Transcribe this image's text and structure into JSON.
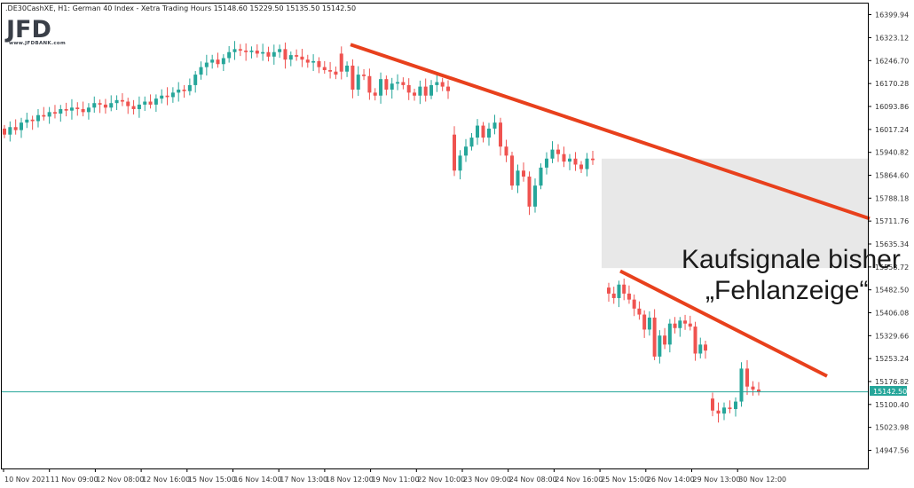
{
  "header": {
    "symbol_info": ".DE30CashXE, H1:  German 40 Index  - Xetra Trading Hours  15148.60 15229.50 15135.50 15142.50"
  },
  "logo": {
    "text": "JFD",
    "sub": "www.JFDBANK.com"
  },
  "annotation": {
    "line1": "Kaufsignale bisher",
    "line2": "„Fehlanzeige“"
  },
  "current_price_label": "15142.50",
  "colors": {
    "up": "#26a69a",
    "down": "#ef5350",
    "trendline": "#e8401c",
    "zone": "#e8e8e8",
    "price_line": "#26a69a"
  },
  "chart_data": {
    "type": "candlestick",
    "ylim": [
      14900,
      16430
    ],
    "y_ticks": [
      "16399.94",
      "16323.12",
      "16246.70",
      "16170.28",
      "16093.86",
      "16017.24",
      "15940.82",
      "15864.60",
      "15788.18",
      "15711.76",
      "15635.34",
      "15558.72",
      "15482.50",
      "15406.08",
      "15329.66",
      "15253.24",
      "15176.82",
      "15100.40",
      "15023.98",
      "14947.56"
    ],
    "x_ticks": [
      "10 Nov 2021",
      "11 Nov 09:00",
      "12 Nov 08:00",
      "12 Nov 16:00",
      "15 Nov 15:00",
      "16 Nov 14:00",
      "17 Nov 13:00",
      "18 Nov 12:00",
      "19 Nov 11:00",
      "22 Nov 10:00",
      "23 Nov 09:00",
      "24 Nov 08:00",
      "24 Nov 16:00",
      "25 Nov 15:00",
      "26 Nov 14:00",
      "29 Nov 13:00",
      "30 Nov 12:00"
    ],
    "price_line": 15142.5,
    "candles_open_close": [
      [
        16020,
        16000
      ],
      [
        16000,
        16025
      ],
      [
        16025,
        16015
      ],
      [
        16015,
        16040
      ],
      [
        16040,
        16050
      ],
      [
        16050,
        16045
      ],
      [
        16045,
        16065
      ],
      [
        16065,
        16060
      ],
      [
        16060,
        16075
      ],
      [
        16075,
        16070
      ],
      [
        16070,
        16085
      ],
      [
        16085,
        16080
      ],
      [
        16080,
        16090
      ],
      [
        16090,
        16085
      ],
      [
        16085,
        16075
      ],
      [
        16075,
        16090
      ],
      [
        16090,
        16105
      ],
      [
        16105,
        16100
      ],
      [
        16100,
        16090
      ],
      [
        16090,
        16105
      ],
      [
        16105,
        16115
      ],
      [
        16115,
        16110
      ],
      [
        16110,
        16095
      ],
      [
        16095,
        16085
      ],
      [
        16085,
        16100
      ],
      [
        16100,
        16110
      ],
      [
        16110,
        16100
      ],
      [
        16100,
        16120
      ],
      [
        16120,
        16130
      ],
      [
        16130,
        16125
      ],
      [
        16125,
        16140
      ],
      [
        16140,
        16150
      ],
      [
        16150,
        16145
      ],
      [
        16145,
        16165
      ],
      [
        16165,
        16200
      ],
      [
        16200,
        16225
      ],
      [
        16225,
        16240
      ],
      [
        16240,
        16250
      ],
      [
        16250,
        16235
      ],
      [
        16235,
        16255
      ],
      [
        16255,
        16275
      ],
      [
        16275,
        16285
      ],
      [
        16285,
        16280
      ],
      [
        16280,
        16275
      ],
      [
        16275,
        16280
      ],
      [
        16280,
        16270
      ],
      [
        16270,
        16275
      ],
      [
        16275,
        16260
      ],
      [
        16260,
        16275
      ],
      [
        16275,
        16285
      ],
      [
        16285,
        16250
      ],
      [
        16250,
        16265
      ],
      [
        16265,
        16260
      ],
      [
        16260,
        16250
      ],
      [
        16250,
        16240
      ],
      [
        16240,
        16245
      ],
      [
        16245,
        16225
      ],
      [
        16225,
        16215
      ],
      [
        16215,
        16210
      ],
      [
        16210,
        16200
      ],
      [
        16270,
        16210
      ],
      [
        16210,
        16230
      ],
      [
        16230,
        16150
      ],
      [
        16150,
        16200
      ],
      [
        16200,
        16195
      ],
      [
        16195,
        16140
      ],
      [
        16140,
        16130
      ],
      [
        16130,
        16185
      ],
      [
        16185,
        16150
      ],
      [
        16150,
        16170
      ],
      [
        16170,
        16175
      ],
      [
        16175,
        16165
      ],
      [
        16165,
        16140
      ],
      [
        16140,
        16130
      ],
      [
        16130,
        16160
      ],
      [
        16160,
        16130
      ],
      [
        16130,
        16165
      ],
      [
        16165,
        16175
      ],
      [
        16175,
        16160
      ],
      [
        16160,
        16145
      ],
      [
        16000,
        15880
      ],
      [
        15880,
        15930
      ],
      [
        15930,
        15960
      ],
      [
        15960,
        15990
      ],
      [
        15990,
        16030
      ],
      [
        16030,
        15990
      ],
      [
        15990,
        16020
      ],
      [
        16020,
        16040
      ],
      [
        16040,
        15960
      ],
      [
        15960,
        15930
      ],
      [
        15930,
        15830
      ],
      [
        15830,
        15880
      ],
      [
        15880,
        15860
      ],
      [
        15860,
        15760
      ],
      [
        15760,
        15830
      ],
      [
        15830,
        15890
      ],
      [
        15890,
        15920
      ],
      [
        15920,
        15950
      ],
      [
        15950,
        15935
      ],
      [
        15935,
        15910
      ],
      [
        15910,
        15920
      ],
      [
        15920,
        15900
      ],
      [
        15900,
        15885
      ],
      [
        15885,
        15920
      ],
      [
        15920,
        15915
      ],
      [
        15490,
        15470
      ],
      [
        15470,
        15455
      ],
      [
        15455,
        15500
      ],
      [
        15500,
        15470
      ],
      [
        15470,
        15450
      ],
      [
        15450,
        15420
      ],
      [
        15420,
        15400
      ],
      [
        15400,
        15350
      ],
      [
        15350,
        15390
      ],
      [
        15390,
        15260
      ],
      [
        15260,
        15330
      ],
      [
        15330,
        15300
      ],
      [
        15300,
        15370
      ],
      [
        15370,
        15355
      ],
      [
        15355,
        15380
      ],
      [
        15380,
        15370
      ],
      [
        15370,
        15360
      ],
      [
        15360,
        15270
      ],
      [
        15270,
        15300
      ],
      [
        15300,
        15280
      ],
      [
        15120,
        15080
      ],
      [
        15080,
        15070
      ],
      [
        15070,
        15090
      ],
      [
        15090,
        15085
      ],
      [
        15085,
        15110
      ],
      [
        15110,
        15220
      ],
      [
        15220,
        15160
      ],
      [
        15160,
        15150
      ],
      [
        15150,
        15142.5
      ]
    ],
    "trendlines": [
      {
        "from": [
          "18 Nov 12:00",
          16300
        ],
        "to": [
          "30 Nov 12:00+",
          15720
        ]
      },
      {
        "from": [
          "25 Nov 15:00",
          15540
        ],
        "to": [
          "30 Nov 12:00+",
          15200
        ]
      }
    ]
  }
}
